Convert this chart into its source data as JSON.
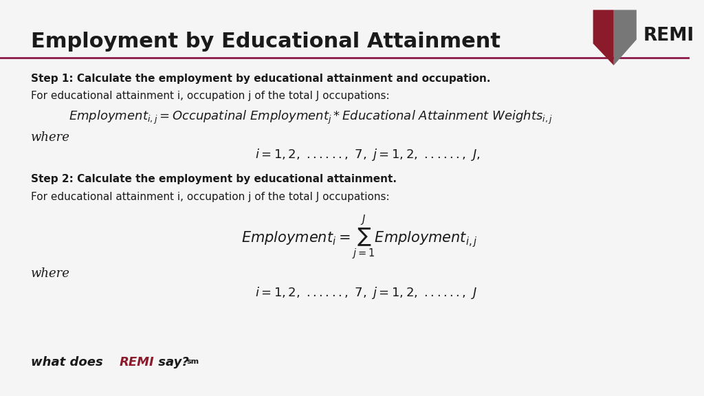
{
  "title": "Employment by Educational Attainment",
  "title_fontsize": 22,
  "title_color": "#1a1a1a",
  "header_line_color": "#8b1a4a",
  "bg_color": "#f5f5f5",
  "step1_bold": "Step 1: Calculate the employment by educational attainment and occupation.",
  "step1_sub": "For educational attainment i, occupation j of the total J occupations:",
  "step1_eq": "$Employment_{i,j} = Occupatinal\\ Employment_j * Educational\\ Attainment\\ Weights_{i,j}$",
  "step1_where": "where",
  "step1_ij": "$i = 1,2,\\ ......,\\ 7,\\ j = 1,2,\\ ......,\\ J,$",
  "step2_bold": "Step 2: Calculate the employment by educational attainment.",
  "step2_sub": "For educational attainment i, occupation j of the total J occupations:",
  "step2_eq": "$Employment_i = \\sum_{j=1}^{J} Employment_{i,j}$",
  "step2_where": "where",
  "step2_ij": "$i = 1,2,\\ ......,\\ 7,\\ j = 1,2,\\ ......,\\ J$",
  "footer_black1": "what does ",
  "footer_red": "REMI",
  "footer_black2": " say?",
  "footer_sup": "sm",
  "remi_color": "#8b1a2a",
  "gray_color": "#777777",
  "text_color": "#1a1a1a"
}
